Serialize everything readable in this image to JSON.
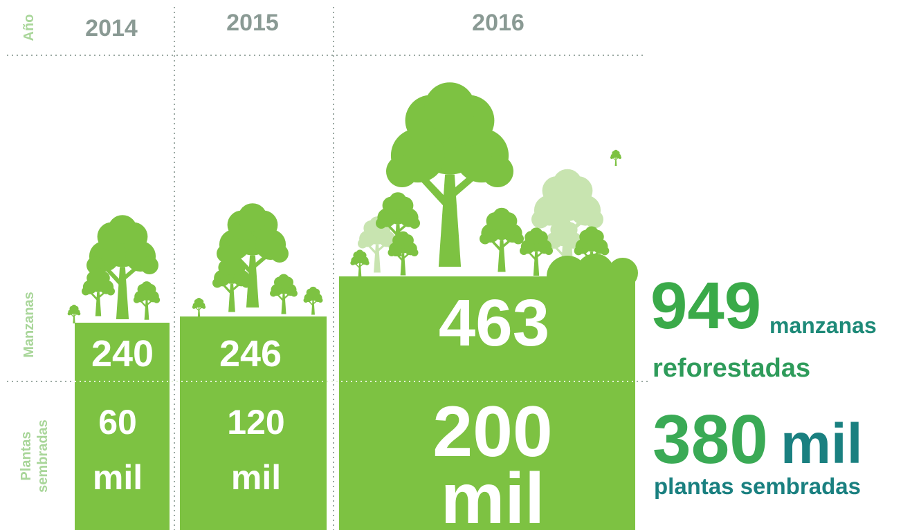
{
  "row_labels": {
    "year": "Año",
    "manzanas": "Manzanas",
    "plantas": [
      "Plantas",
      "sembradas"
    ]
  },
  "columns": [
    {
      "year": "2014",
      "manzanas": 240,
      "plantas": 60,
      "plantas_unit": "mil"
    },
    {
      "year": "2015",
      "manzanas": 246,
      "plantas": 120,
      "plantas_unit": "mil"
    },
    {
      "year": "2016",
      "manzanas": 463,
      "plantas": 200,
      "plantas_unit": "mil"
    }
  ],
  "summary": {
    "manzanas_total": 949,
    "manzanas_text": "manzanas",
    "manzanas_text2": "reforestadas",
    "plantas_total": 380,
    "plantas_unit": "mil",
    "plantas_text": "plantas sembradas"
  }
}
